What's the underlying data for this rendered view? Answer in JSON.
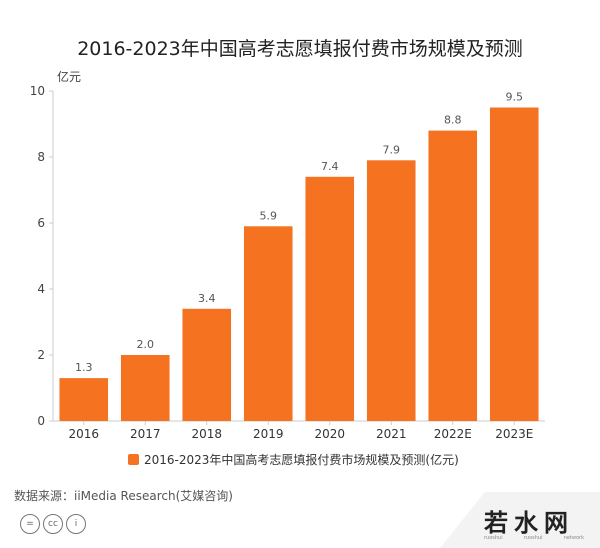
{
  "chart_data": {
    "type": "bar",
    "title": "2016-2023年中国高考志愿填报付费市场规模及预测",
    "unit_label": "亿元",
    "categories": [
      "2016",
      "2017",
      "2018",
      "2019",
      "2020",
      "2021",
      "2022E",
      "2023E"
    ],
    "values": [
      1.3,
      2.0,
      3.4,
      5.9,
      7.4,
      7.9,
      8.8,
      9.5
    ],
    "value_labels": [
      "1.3",
      "2.0",
      "3.4",
      "5.9",
      "7.4",
      "7.9",
      "8.8",
      "9.5"
    ],
    "ylim": [
      0,
      10
    ],
    "yticks": [
      0,
      2,
      4,
      6,
      8,
      10
    ],
    "legend": "2016-2023年中国高考志愿填报付费市场规模及预测(亿元)",
    "legend_position": "bottom",
    "bar_color": "#f57320",
    "grid": false
  },
  "source": "数据来源：iiMedia Research(艾媒咨询)",
  "license_icons": [
    "equal-sign-icon",
    "cc-icon",
    "person-icon"
  ],
  "license_glyphs": [
    "=",
    "cc",
    "i"
  ],
  "watermark": {
    "text": "若水网",
    "subtext": [
      "ruoshui",
      "ruoshui",
      "network"
    ]
  }
}
